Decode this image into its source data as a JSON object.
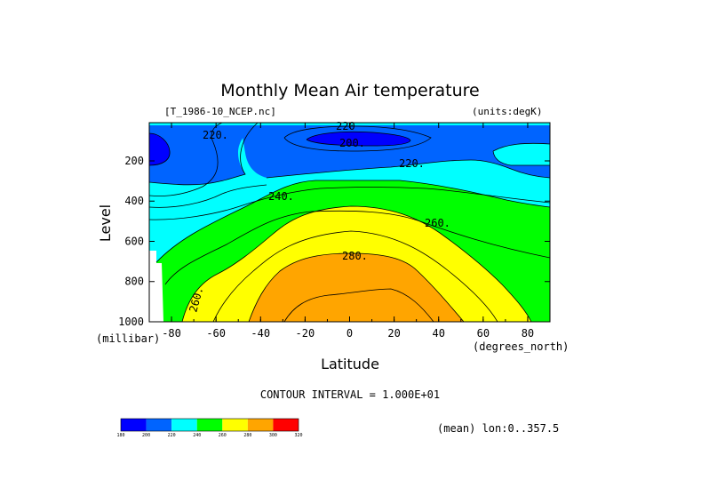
{
  "chart_data": {
    "type": "contour",
    "title": "Monthly Mean Air temperature",
    "file_label": "[T_1986-10_NCEP.nc]",
    "units_label": "(units:degK)",
    "xlabel": "Latitude",
    "xunits": "(degrees_north)",
    "ylabel": "Level",
    "yunits": "(millibar)",
    "x_ticks": [
      "-80",
      "-60",
      "-40",
      "-20",
      "0",
      "20",
      "40",
      "60",
      "80"
    ],
    "y_ticks": [
      "200",
      "400",
      "600",
      "800",
      "1000"
    ],
    "xlim": [
      -90,
      90
    ],
    "ylim": [
      1000,
      10
    ],
    "contour_interval_text": "CONTOUR INTERVAL = 1.000E+01",
    "mean_text": "(mean) lon:0..357.5",
    "contour_labels": [
      "220.",
      "220",
      "200.",
      "220.",
      "240.",
      "260.",
      "280.",
      "260."
    ],
    "levels": [
      180,
      200,
      220,
      240,
      260,
      280,
      300,
      320
    ],
    "colorbar": {
      "ticks": [
        "180",
        "200",
        "220",
        "240",
        "260",
        "280",
        "300",
        "320"
      ],
      "colors": [
        "#0000ff",
        "#0064ff",
        "#00ffff",
        "#00ff00",
        "#ffff00",
        "#ffa500",
        "#ff0000"
      ]
    }
  }
}
